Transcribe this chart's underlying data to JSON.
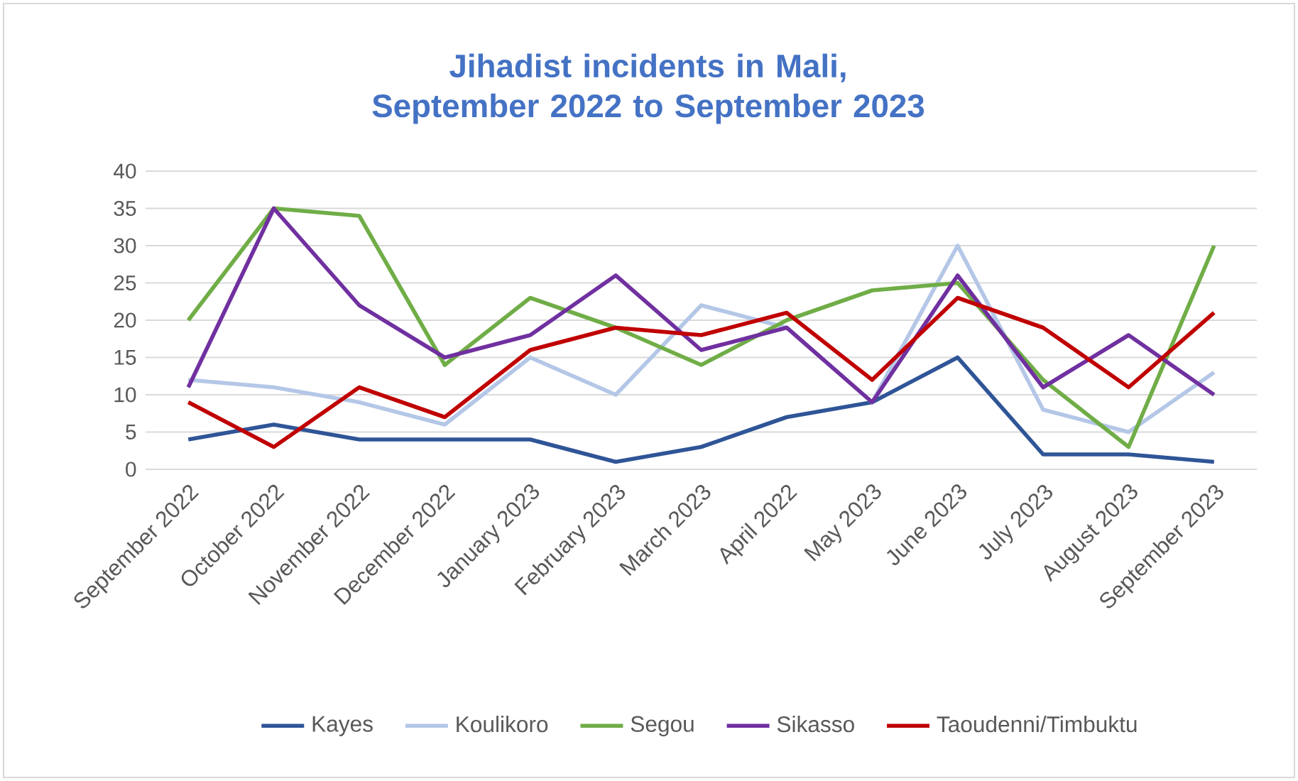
{
  "chart_data": {
    "type": "line",
    "title": "Jihadist incidents in Mali, September 2022 to September 2023",
    "categories": [
      "September 2022",
      "October 2022",
      "November 2022",
      "December 2022",
      "January 2023",
      "February 2023",
      "March 2023",
      "April 2022",
      "May 2023",
      "June 2023",
      "July 2023",
      "August 2023",
      "September 2023"
    ],
    "series": [
      {
        "name": "Kayes",
        "color": "#2f5597",
        "values": [
          4,
          6,
          4,
          4,
          4,
          1,
          3,
          7,
          9,
          15,
          2,
          2,
          1
        ]
      },
      {
        "name": "Koulikoro",
        "color": "#b4c7e7",
        "values": [
          12,
          11,
          9,
          6,
          15,
          10,
          22,
          19,
          9,
          30,
          8,
          5,
          13
        ]
      },
      {
        "name": "Segou",
        "color": "#70ad47",
        "values": [
          20,
          35,
          34,
          14,
          23,
          19,
          14,
          20,
          24,
          25,
          12,
          3,
          30
        ]
      },
      {
        "name": "Sikasso",
        "color": "#7030a0",
        "values": [
          11,
          35,
          22,
          15,
          18,
          26,
          16,
          19,
          9,
          26,
          11,
          18,
          10
        ]
      },
      {
        "name": "Taoudenni/Timbuktu",
        "color": "#c00000",
        "values": [
          9,
          3,
          11,
          7,
          16,
          19,
          18,
          21,
          12,
          23,
          19,
          11,
          21
        ]
      }
    ],
    "ylim": [
      0,
      40
    ],
    "yticks": [
      0,
      5,
      10,
      15,
      20,
      25,
      30,
      35,
      40
    ],
    "grid": "y",
    "legend": "bottom",
    "marker": "none",
    "line_style": "solid"
  }
}
